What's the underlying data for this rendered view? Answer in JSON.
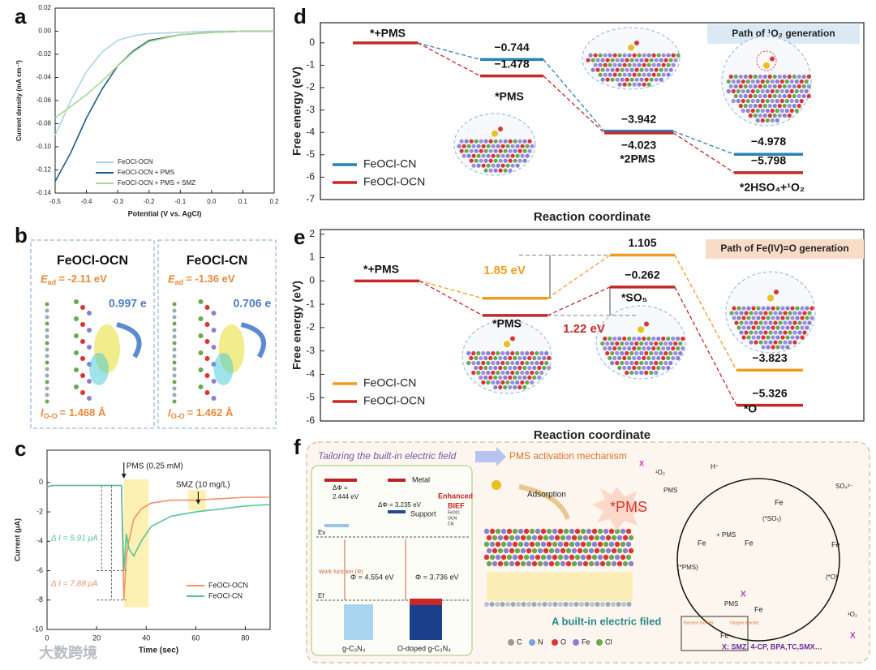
{
  "panel_letters": [
    "a",
    "b",
    "c",
    "d",
    "e",
    "f"
  ],
  "chart_data": [
    {
      "type": "line",
      "x": [
        -0.5,
        -0.45,
        -0.4,
        -0.35,
        -0.3,
        -0.25,
        -0.2,
        -0.1,
        0,
        0.1,
        0.2
      ],
      "xlim": [
        -0.5,
        0.2
      ],
      "ylim": [
        -0.14,
        0.02
      ],
      "xticks": [
        -0.5,
        -0.4,
        -0.3,
        -0.2,
        -0.1,
        {
          "value": 0,
          "label": "0.0"
        },
        0.1,
        0.2
      ],
      "yticks": [
        0.02,
        {
          "value": 0,
          "label": "0.00"
        },
        -0.02,
        -0.04,
        -0.06,
        -0.08,
        {
          "value": -0.1,
          "label": "-0.10"
        },
        -0.12,
        -0.14
      ],
      "x_label": "Potential (V vs. AgCl)",
      "y_label": "Current density (mA cm⁻²)",
      "series": [
        {
          "name": "FeOCl-OCN",
          "color": "#a9d6e5",
          "values": [
            -0.09,
            -0.06,
            -0.035,
            -0.018,
            -0.008,
            -0.004,
            -0.002,
            -0.001,
            0,
            0,
            0
          ]
        },
        {
          "name": "FeOCl-OCN + PMS",
          "color": "#1d5a8a",
          "values": [
            -0.13,
            -0.105,
            -0.075,
            -0.05,
            -0.03,
            -0.017,
            -0.008,
            -0.003,
            -0.001,
            0,
            0
          ]
        },
        {
          "name": "FeOCl-OCN + PMS + SMZ",
          "color": "#a6d98a",
          "values": [
            -0.075,
            -0.065,
            -0.055,
            -0.043,
            -0.03,
            -0.018,
            -0.009,
            -0.003,
            -0.001,
            0,
            0
          ]
        }
      ]
    },
    {
      "type": "line",
      "x": [
        0,
        2,
        28,
        30,
        31,
        32,
        33,
        35,
        38,
        42,
        50,
        60,
        70,
        80,
        90
      ],
      "xlim": [
        0,
        90
      ],
      "ylim": [
        -10,
        2.2
      ],
      "xticks": [
        0,
        20,
        40,
        60,
        80
      ],
      "yticks": [
        0,
        -2,
        -4,
        -6,
        -8,
        -10
      ],
      "x_label": "Time (sec)",
      "y_label": "Current (μA)",
      "annotations": [
        "PMS (0.25 mM)",
        "SMZ (10 mg/L)",
        "Δ I = 5.91 μA",
        "Δ I = 7.88 μA"
      ],
      "series": [
        {
          "name": "FeOCl-OCN",
          "color": "#f0916c",
          "values": [
            -0.3,
            -0.2,
            -0.2,
            -0.2,
            -8,
            -5,
            -4,
            -2.5,
            -1.8,
            -1.4,
            -1.2,
            -1.2,
            -1.1,
            -1,
            -1
          ]
        },
        {
          "name": "FeOCl-CN",
          "color": "#52c49a",
          "values": [
            -0.3,
            -0.2,
            -0.2,
            -0.2,
            -6,
            -3.5,
            -4.5,
            -5,
            -4,
            -3,
            -2.3,
            -2,
            -1.8,
            -1.6,
            -1.5
          ]
        }
      ]
    },
    {
      "type": "energy",
      "title": "Path of ¹O₂ generation",
      "x_label": "Reaction coordinate",
      "y_label": "Free energy (eV)",
      "ylim": [
        -7,
        0.9
      ],
      "yticks": [
        0,
        -1,
        -2,
        -3,
        -4,
        -5,
        -6,
        -7
      ],
      "start": {
        "label": "*+PMS",
        "value": 0
      },
      "categories": [
        "*PMS",
        "*2PMS",
        "*2HSO₄+¹O₂"
      ],
      "series": [
        {
          "name": "FeOCl-CN",
          "color": "#2c80b4",
          "values": [
            -0.744,
            -3.942,
            -4.978
          ],
          "value_labels": [
            "−0.744",
            "−3.942",
            "−4.978"
          ]
        },
        {
          "name": "FeOCl-OCN",
          "color": "#c62828",
          "values": [
            -1.478,
            -4.023,
            -5.798
          ],
          "value_labels": [
            "−1.478",
            "−4.023",
            "−5.798"
          ]
        }
      ]
    },
    {
      "type": "energy",
      "title": "Path of Fe(IV)=O generation",
      "x_label": "Reaction coordinate",
      "y_label": "Free energy (eV)",
      "ylim": [
        -6,
        2.2
      ],
      "yticks": [
        2,
        1,
        0,
        -1,
        -2,
        -3,
        -4,
        -5,
        -6
      ],
      "start": {
        "label": "*+PMS",
        "value": 0
      },
      "categories": [
        "*PMS",
        "*SO₅",
        "*O"
      ],
      "annotations": [
        "1.85 eV",
        "1.22 eV"
      ],
      "series": [
        {
          "name": "FeOCl-CN",
          "color": "#f29c1f",
          "values": [
            -0.744,
            1.105,
            -3.823
          ],
          "value_labels": [
            null,
            "1.105",
            "−3.823"
          ]
        },
        {
          "name": "FeOCl-OCN",
          "color": "#c62828",
          "values": [
            -1.478,
            -0.262,
            -5.326
          ],
          "value_labels": [
            null,
            "−0.262",
            "−5.326"
          ]
        }
      ]
    }
  ],
  "panel_b": {
    "structures": [
      {
        "title": "FeOCl-OCN",
        "e_symbol": "E",
        "e_sub": "ad",
        "e_value": "= -2.11 eV",
        "charge": "0.997 e",
        "l_symbol": "l",
        "l_sub": "O-O",
        "l_value": "= 1.468 Å"
      },
      {
        "title": "FeOCl-CN",
        "e_symbol": "E",
        "e_sub": "ad",
        "e_value": "= -1.36 eV",
        "charge": "0.706 e",
        "l_symbol": "l",
        "l_sub": "O-O",
        "l_value": "= 1.462 Å"
      }
    ]
  },
  "panel_f": {
    "texts": [
      "Tailoring the built-in electric field",
      "PMS activation mechanism",
      "Metal",
      "ΔΦ =",
      "2.444 eV",
      "ΔΦ = 3.235 eV",
      "Enhanced",
      "BIEF",
      "Support",
      "FeOCl",
      "OCN",
      "CN",
      "Ev",
      "Work function (Φ)",
      "Φ = 4.554 eV",
      "Φ = 3.736 eV",
      "Ef",
      "g-C₃N₄",
      "O-doped g-C₃N₄",
      "Adsorption",
      "*PMS",
      "A built-in electric filed",
      "C",
      "N",
      "O",
      "Fe",
      "Cl",
      "X",
      "¹O₂",
      "H⁺",
      "PMS",
      "(*SO₅)",
      "SO₄²⁻",
      "+ PMS",
      "(*PMS)",
      "(*O)",
      "PMS",
      "¹O₂",
      "X",
      "X",
      "Electron transfer",
      "Oxygen transfer",
      "X: SMZ, 4-CP, BPA,TC,SMX…",
      "Fe",
      "Fe",
      "Fe",
      "Fe",
      "Fe",
      "Fe"
    ]
  },
  "watermark": "大数跨境"
}
